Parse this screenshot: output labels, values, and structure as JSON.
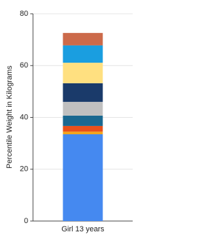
{
  "chart_data": {
    "type": "stacked-bar",
    "y_label": "Percentile Weight in Kilograms",
    "categories": [
      "Girl 13 years"
    ],
    "series": [
      {
        "color": "#4589f0",
        "values": [
          33.5
        ]
      },
      {
        "color": "#f2a31a",
        "values": [
          1.0
        ]
      },
      {
        "color": "#e8501a",
        "values": [
          2.2
        ]
      },
      {
        "color": "#1a6890",
        "values": [
          4.0
        ]
      },
      {
        "color": "#c0c0c0",
        "values": [
          5.3
        ]
      },
      {
        "color": "#1a3a6a",
        "values": [
          7.2
        ]
      },
      {
        "color": "#ffe080",
        "values": [
          7.9
        ]
      },
      {
        "color": "#1a9ee0",
        "values": [
          6.7
        ]
      },
      {
        "color": "#cc6a4a",
        "values": [
          4.8
        ]
      }
    ],
    "ylim": [
      0,
      80
    ],
    "yticks": [
      0,
      20,
      40,
      60,
      80
    ],
    "grid": true
  }
}
